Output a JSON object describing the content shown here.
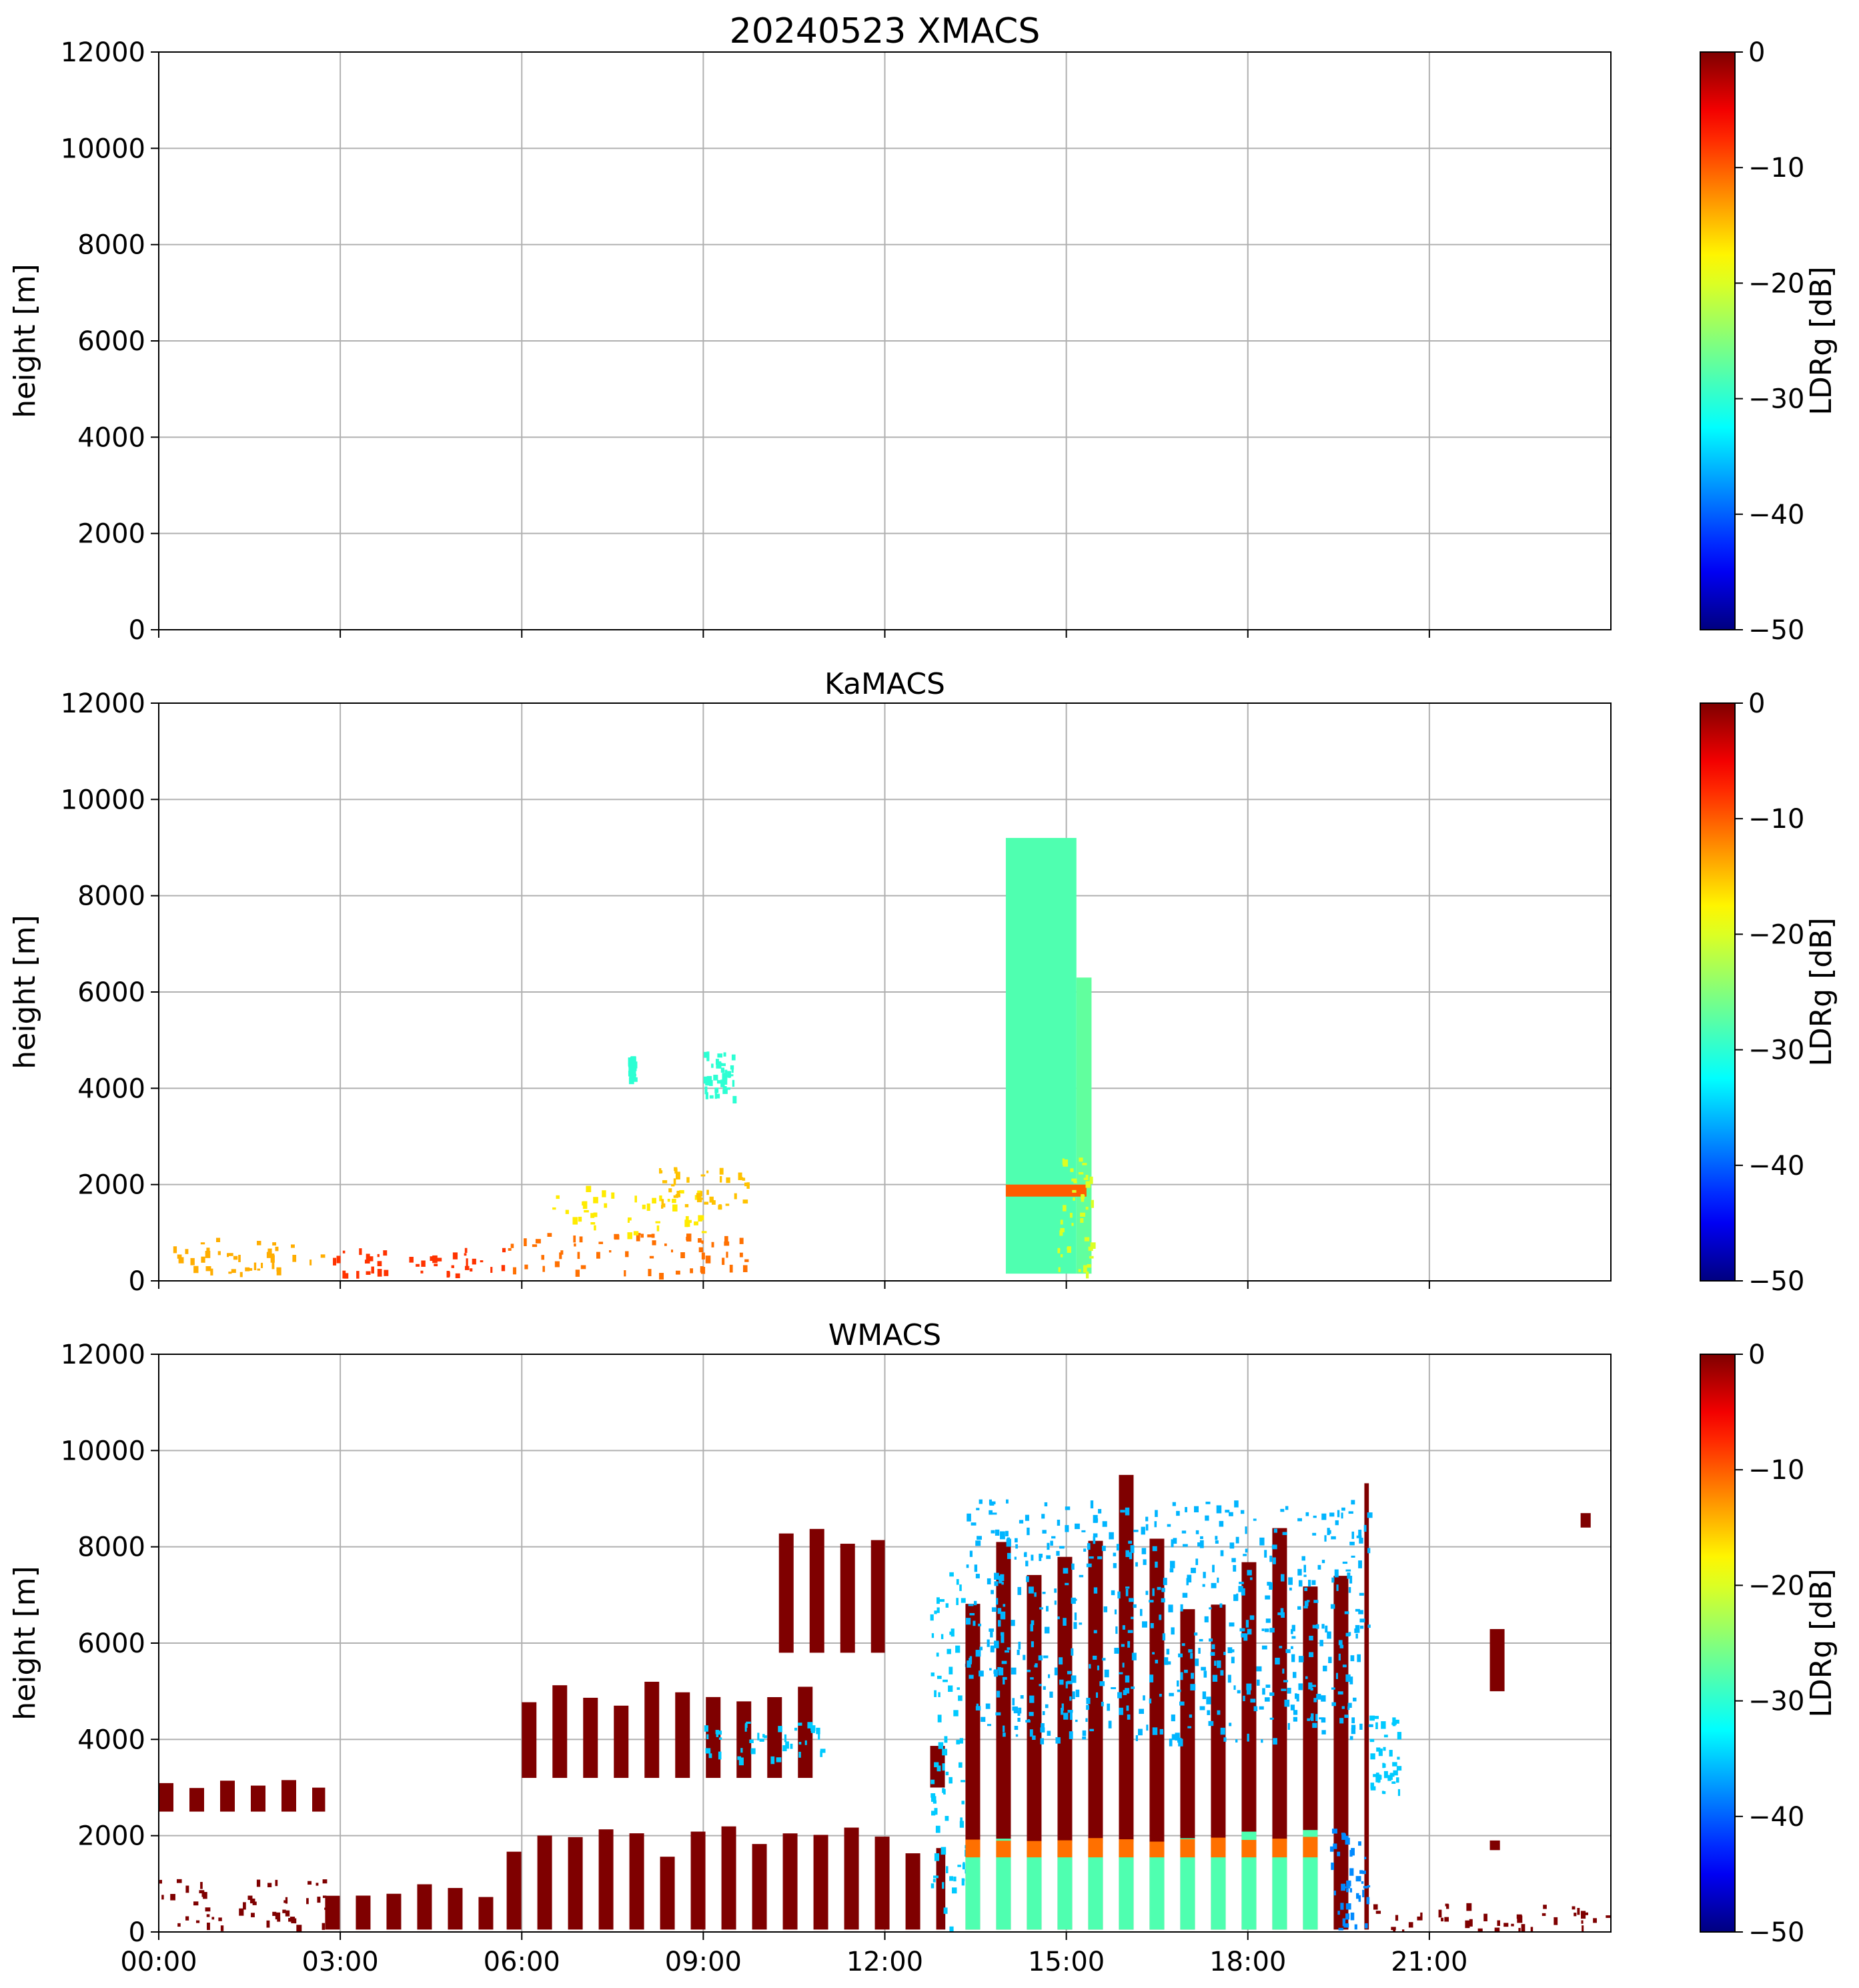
{
  "figure_title": "20240523 XMACS",
  "colormap": {
    "name": "jet",
    "stops": [
      "#00007f",
      "#0000ff",
      "#00ffff",
      "#ffff00",
      "#ff0000",
      "#7f0000"
    ]
  },
  "chart_data": [
    {
      "type": "heatmap",
      "title": "20240523 XMACS",
      "ylabel": "height [m]",
      "xlim": [
        "00:00",
        "24:00"
      ],
      "ylim": [
        0,
        12000
      ],
      "yticks": [
        0,
        2000,
        4000,
        6000,
        8000,
        10000,
        12000
      ],
      "xticks": [
        "00:00",
        "03:00",
        "06:00",
        "09:00",
        "12:00",
        "15:00",
        "18:00",
        "21:00"
      ],
      "show_xticklabels": false,
      "grid": true,
      "colorbar": {
        "label": "LDRg [dB]",
        "range": [
          -50,
          0
        ],
        "ticks": [
          0,
          -10,
          -20,
          -30,
          -40,
          -50
        ]
      },
      "regions": []
    },
    {
      "type": "heatmap",
      "title": "KaMACS",
      "ylabel": "height [m]",
      "xlim": [
        "00:00",
        "24:00"
      ],
      "ylim": [
        0,
        12000
      ],
      "yticks": [
        0,
        2000,
        4000,
        6000,
        8000,
        10000,
        12000
      ],
      "xticks": [
        "00:00",
        "03:00",
        "06:00",
        "09:00",
        "12:00",
        "15:00",
        "18:00",
        "21:00"
      ],
      "show_xticklabels": false,
      "grid": true,
      "colorbar": {
        "label": "LDRg [dB]",
        "range": [
          -50,
          0
        ],
        "ticks": [
          0,
          -10,
          -20,
          -30,
          -40,
          -50
        ]
      },
      "regions": [
        {
          "t": [
            "00:00",
            "02:45"
          ],
          "h": [
            150,
            900
          ],
          "ldr": -14,
          "pattern": "speckle"
        },
        {
          "t": [
            "02:45",
            "05:45"
          ],
          "h": [
            150,
            700
          ],
          "ldr": -8,
          "pattern": "speckle"
        },
        {
          "t": [
            "05:45",
            "09:45"
          ],
          "h": [
            150,
            1000
          ],
          "ldr": -11,
          "pattern": "speckle"
        },
        {
          "t": [
            "06:30",
            "09:00"
          ],
          "h": [
            1000,
            2000
          ],
          "ldr": -17,
          "pattern": "speckle"
        },
        {
          "t": [
            "08:15",
            "09:45"
          ],
          "h": [
            1500,
            2400
          ],
          "ldr": -15,
          "pattern": "speckle"
        },
        {
          "t": [
            "09:00",
            "09:30"
          ],
          "h": [
            3800,
            4800
          ],
          "ldr": -30,
          "pattern": "speckle"
        },
        {
          "t": [
            "07:45",
            "07:50"
          ],
          "h": [
            4200,
            4700
          ],
          "ldr": -30,
          "pattern": "speckle"
        },
        {
          "t": [
            "14:00",
            "15:10"
          ],
          "h": [
            150,
            9200
          ],
          "ldr": -28,
          "pattern": "solid"
        },
        {
          "t": [
            "15:10",
            "15:25"
          ],
          "h": [
            150,
            6300
          ],
          "ldr": -27,
          "pattern": "solid"
        },
        {
          "t": [
            "14:00",
            "15:20"
          ],
          "h": [
            1750,
            2000
          ],
          "ldr": -10,
          "pattern": "solid"
        },
        {
          "t": [
            "14:50",
            "15:25"
          ],
          "h": [
            150,
            2600
          ],
          "ldr": -20,
          "pattern": "speckle"
        }
      ]
    },
    {
      "type": "heatmap",
      "title": "WMACS",
      "ylabel": "height [m]",
      "xlim": [
        "00:00",
        "24:00"
      ],
      "ylim": [
        0,
        12000
      ],
      "yticks": [
        0,
        2000,
        4000,
        6000,
        8000,
        10000,
        12000
      ],
      "xticks": [
        "00:00",
        "03:00",
        "06:00",
        "09:00",
        "12:00",
        "15:00",
        "18:00",
        "21:00"
      ],
      "show_xticklabels": true,
      "grid": true,
      "colorbar": {
        "label": "LDRg [dB]",
        "range": [
          -50,
          0
        ],
        "ticks": [
          0,
          -10,
          -20,
          -30,
          -40,
          -50
        ]
      },
      "regions": [
        {
          "t": [
            "00:00",
            "02:45"
          ],
          "h": [
            2500,
            3200
          ],
          "ldr": 0,
          "pattern": "stripes"
        },
        {
          "t": [
            "00:00",
            "02:45"
          ],
          "h": [
            50,
            1100
          ],
          "ldr": 0,
          "pattern": "speckle"
        },
        {
          "t": [
            "02:45",
            "05:45"
          ],
          "h": [
            50,
            1000
          ],
          "ldr": 0,
          "pattern": "stripes"
        },
        {
          "t": [
            "05:45",
            "13:00"
          ],
          "h": [
            50,
            2200
          ],
          "ldr": 0,
          "pattern": "stripes"
        },
        {
          "t": [
            "06:00",
            "11:00"
          ],
          "h": [
            3200,
            5200
          ],
          "ldr": 0,
          "pattern": "stripes"
        },
        {
          "t": [
            "09:00",
            "11:00"
          ],
          "h": [
            3600,
            4400
          ],
          "ldr": -35,
          "pattern": "speckle"
        },
        {
          "t": [
            "10:15",
            "12:00"
          ],
          "h": [
            5800,
            8500
          ],
          "ldr": 0,
          "pattern": "stripes"
        },
        {
          "t": [
            "12:45",
            "13:15"
          ],
          "h": [
            3000,
            4000
          ],
          "ldr": 0,
          "pattern": "stripes"
        },
        {
          "t": [
            "12:45",
            "13:20"
          ],
          "h": [
            50,
            7600
          ],
          "ldr": -35,
          "pattern": "speckle"
        },
        {
          "t": [
            "13:20",
            "20:00"
          ],
          "h": [
            50,
            9500
          ],
          "ldr": 0,
          "pattern": "stripes"
        },
        {
          "t": [
            "13:20",
            "20:00"
          ],
          "h": [
            4000,
            9000
          ],
          "ldr": -36,
          "pattern": "speckle"
        },
        {
          "t": [
            "13:20",
            "19:20"
          ],
          "h": [
            50,
            2200
          ],
          "ldr": -28,
          "pattern": "stripes"
        },
        {
          "t": [
            "13:20",
            "19:20"
          ],
          "h": [
            1550,
            2000
          ],
          "ldr": -11,
          "pattern": "stripes"
        },
        {
          "t": [
            "19:20",
            "20:00"
          ],
          "h": [
            50,
            2300
          ],
          "ldr": -38,
          "pattern": "speckle"
        },
        {
          "t": [
            "20:00",
            "20:30"
          ],
          "h": [
            2800,
            4500
          ],
          "ldr": -35,
          "pattern": "speckle"
        },
        {
          "t": [
            "20:00",
            "24:00"
          ],
          "h": [
            50,
            600
          ],
          "ldr": 0,
          "pattern": "speckle"
        },
        {
          "t": [
            "22:00",
            "22:15"
          ],
          "h": [
            5000,
            6800
          ],
          "ldr": 0,
          "pattern": "stripes"
        },
        {
          "t": [
            "22:00",
            "22:10"
          ],
          "h": [
            1700,
            1900
          ],
          "ldr": 0,
          "pattern": "solid"
        },
        {
          "t": [
            "23:30",
            "23:40"
          ],
          "h": [
            8400,
            8700
          ],
          "ldr": 0,
          "pattern": "solid"
        }
      ]
    }
  ]
}
